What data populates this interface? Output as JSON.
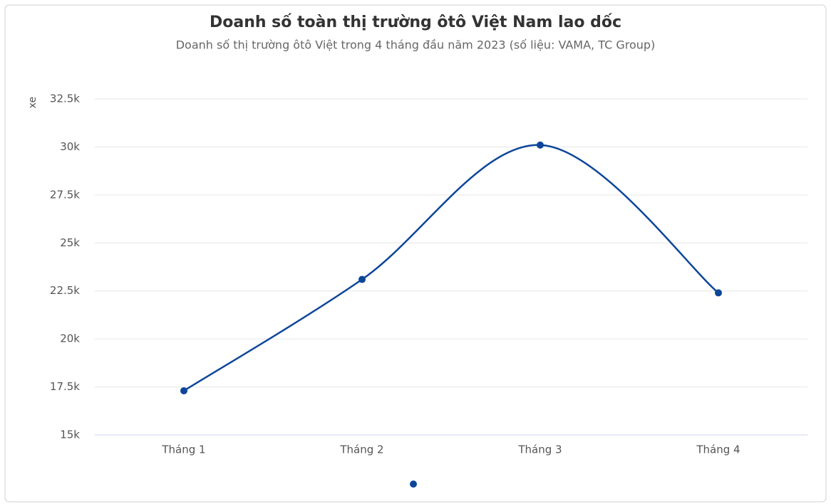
{
  "chart_data": {
    "type": "line",
    "title": "Doanh số toàn thị trường ôtô Việt Nam lao dốc",
    "subtitle": "Doanh số thị trường ôtô Việt trong 4 tháng đầu năm 2023 (số liệu: VAMA, TC Group)",
    "y_label": "xe",
    "categories": [
      "Tháng 1",
      "Tháng 2",
      "Tháng 3",
      "Tháng 4"
    ],
    "series": [
      {
        "color": "#0d4699",
        "values": [
          17300,
          23100,
          30100,
          22400
        ]
      }
    ],
    "ylim": [
      15000,
      32500
    ],
    "yticks": [
      {
        "value": 15000,
        "label": "15k"
      },
      {
        "value": 17500,
        "label": "17.5k"
      },
      {
        "value": 20000,
        "label": "20k"
      },
      {
        "value": 22500,
        "label": "22.5k"
      },
      {
        "value": 25000,
        "label": "25k"
      },
      {
        "value": 27500,
        "label": "27.5k"
      },
      {
        "value": 30000,
        "label": "30k"
      },
      {
        "value": 32500,
        "label": "32.5k"
      }
    ],
    "grid": true,
    "smooth": true
  }
}
